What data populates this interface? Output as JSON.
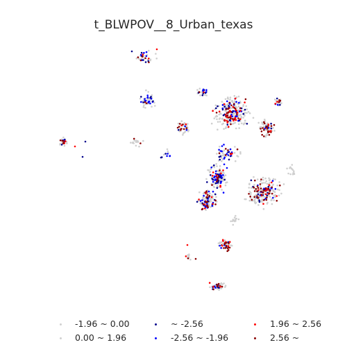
{
  "title": "t_BLWPOV__8_Urban_texas",
  "legend": [
    {
      "label": "-1.96 ~ 0.00",
      "color": "#d0d0d0"
    },
    {
      "label": "0.00 ~ 1.96",
      "color": "#d0d0d0"
    },
    {
      "label": "~ -2.56",
      "color": "#00008b"
    },
    {
      "label": "-2.56 ~ -1.96",
      "color": "#0000ff"
    },
    {
      "label": "1.96 ~ 2.56",
      "color": "#ff0000"
    },
    {
      "label": "2.56 ~",
      "color": "#8b0000"
    }
  ],
  "colors": {
    "insignificant": "#cfcfcf",
    "cold_strong": "#00008b",
    "cold": "#0000ff",
    "hot": "#ff0000",
    "hot_strong": "#8b0000"
  }
}
